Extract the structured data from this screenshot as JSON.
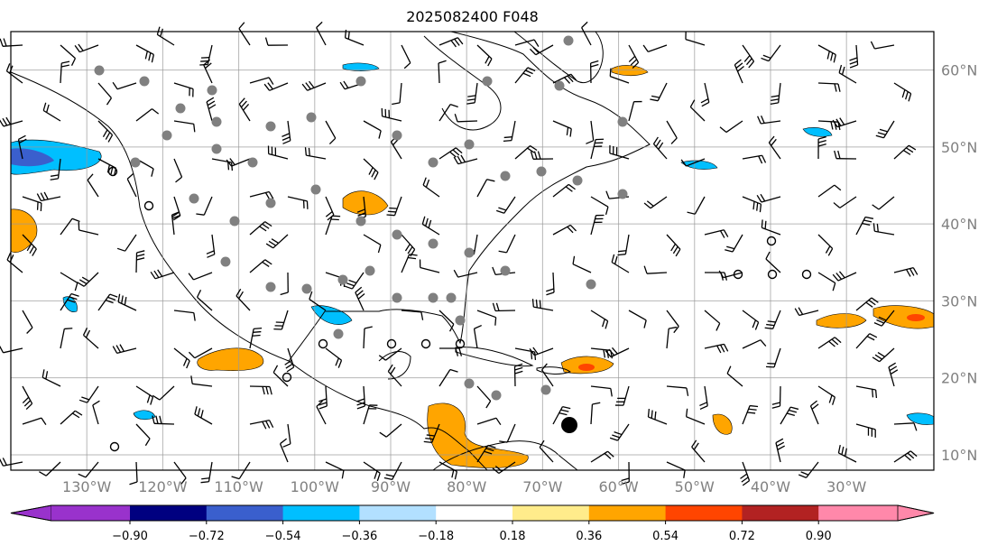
{
  "title": "2025082400 F048",
  "map": {
    "lon_labels": [
      "130°W",
      "120°W",
      "110°W",
      "100°W",
      "90°W",
      "80°W",
      "70°W",
      "60°W",
      "50°W",
      "40°W",
      "30°W"
    ],
    "lon_values": [
      -130,
      -120,
      -110,
      -100,
      -90,
      -80,
      -70,
      -60,
      -50,
      -40,
      -30
    ],
    "lat_labels": [
      "60°N",
      "50°N",
      "40°N",
      "30°N",
      "20°N",
      "10°N"
    ],
    "lat_values": [
      60,
      50,
      40,
      30,
      20,
      10
    ],
    "extent": {
      "lon": [
        -140,
        -18.5
      ],
      "lat": [
        8,
        65
      ]
    }
  },
  "colorbar": {
    "colors": [
      "#9932cc",
      "#000080",
      "#3a5fcd",
      "#00bfff",
      "#b2e0ff",
      "#ffffff",
      "#ffec8b",
      "#ffa500",
      "#ff4500",
      "#b22222",
      "#ff88aa"
    ],
    "ticks": [
      "−0.90",
      "−0.72",
      "−0.54",
      "−0.36",
      "−0.18",
      "0.18",
      "0.36",
      "0.54",
      "0.72",
      "0.90"
    ]
  }
}
